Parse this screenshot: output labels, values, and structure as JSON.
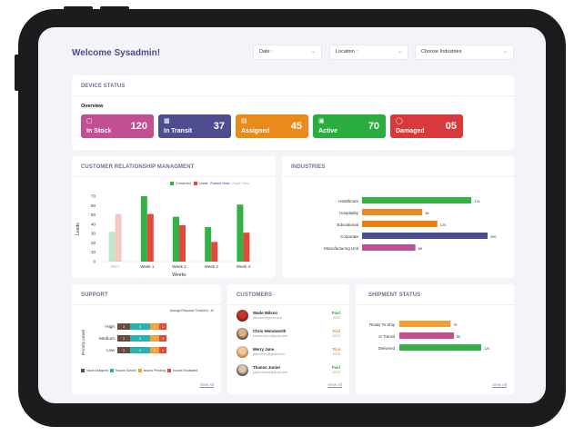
{
  "header": {
    "welcome": "Welcome Sysadmin!",
    "filters": [
      {
        "label": "Date :"
      },
      {
        "label": "Location :"
      },
      {
        "label": "Choose Industries"
      }
    ]
  },
  "device_status": {
    "title": "DEVICE STATUS",
    "overview_label": "Overview",
    "stats": [
      {
        "label": "In Stock",
        "value": "120",
        "color": "#c24f93",
        "icon": "cube-icon"
      },
      {
        "label": "In Transit",
        "value": "37",
        "color": "#4c4e8f",
        "icon": "truck-icon"
      },
      {
        "label": "Assigned",
        "value": "45",
        "color": "#ea8a1c",
        "icon": "assign-icon"
      },
      {
        "label": "Active",
        "value": "70",
        "color": "#2aad3c",
        "icon": "car-icon"
      },
      {
        "label": "Damaged",
        "value": "05",
        "color": "#d8393b",
        "icon": "shield-icon"
      }
    ]
  },
  "crm": {
    "title": "CUSTOMER RELATIONSHIP MANAGMENT",
    "legend": [
      {
        "name": "Converted",
        "color": "#33b143"
      },
      {
        "name": "Leads",
        "color": "#e04a3c"
      }
    ],
    "funnel_view": "Funnel View",
    "separator": "|",
    "graph_view": "Graph View",
    "chart_data": {
      "type": "bar",
      "categories": [
        "DEV",
        "Week 1",
        "Week 2",
        "Week 3",
        "Week 4"
      ],
      "series": [
        {
          "name": "Converted",
          "values": [
            32,
            70,
            48,
            37,
            61
          ]
        },
        {
          "name": "Leads",
          "values": [
            51,
            51,
            39,
            21,
            31
          ]
        }
      ],
      "xlabel": "Weeks",
      "ylabel": "Leads",
      "ylim": [
        0,
        70
      ],
      "yticks": [
        0,
        10,
        20,
        30,
        40,
        50,
        60,
        70
      ]
    }
  },
  "industries": {
    "title": "INDUSTRIES",
    "chart_data": {
      "type": "bar",
      "orientation": "horizontal",
      "categories": [
        "Healthcare",
        "Hospitality",
        "Educational",
        "Corporate",
        "Manufacturing Unit"
      ],
      "values": [
        174,
        96,
        120,
        200,
        85
      ],
      "colors": [
        "#33b143",
        "#e48c2a",
        "#f07d10",
        "#4c4e8f",
        "#c24f93"
      ]
    }
  },
  "support": {
    "title": "SUPPORT",
    "avg_response": "Average Response Time(min) : 40",
    "ylabel": "Priority Level",
    "rows": [
      {
        "label": "High",
        "segments": [
          {
            "v": "3"
          },
          {
            "v": "4"
          },
          {
            "v": "2"
          },
          {
            "v": "1"
          }
        ]
      },
      {
        "label": "Medium",
        "segments": [
          {
            "v": "3"
          },
          {
            "v": "4"
          },
          {
            "v": "2"
          },
          {
            "v": "1"
          }
        ]
      },
      {
        "label": "Low",
        "segments": [
          {
            "v": "3"
          },
          {
            "v": "4"
          },
          {
            "v": "2"
          },
          {
            "v": "1"
          }
        ]
      }
    ],
    "legend": [
      {
        "name": "Issue Assigned",
        "color": "#6b4b3e"
      },
      {
        "name": "Issues Solved",
        "color": "#27b3b3"
      },
      {
        "name": "Issues Pending",
        "color": "#f0a035"
      },
      {
        "name": "Issues Escalated",
        "color": "#e04a3c"
      }
    ],
    "view_all": "View All"
  },
  "customers": {
    "title": "CUSTOMERS",
    "list": [
      {
        "name": "Wade Wilson",
        "email": "wil.wade@gmail.com",
        "status": "Paid",
        "status_color": "#2aad3c",
        "date": "30/08"
      },
      {
        "name": "Chris Hemsworth",
        "email": "hemsworth.c@gmail.com",
        "status": "Trial",
        "status_color": "#ea8a1c",
        "date": "30/08"
      },
      {
        "name": "Merry Jane",
        "email": "jane.merry@gmail.com",
        "status": "Trial",
        "status_color": "#ea8a1c",
        "date": "30/08"
      },
      {
        "name": "Thanos Junior",
        "email": "junior.thanos@gmail.com",
        "status": "Paid",
        "status_color": "#2aad3c",
        "date": "30/08"
      }
    ],
    "view_all": "View All"
  },
  "shipment": {
    "title": "SHIPMENT STATUS",
    "chart_data": {
      "type": "bar",
      "orientation": "horizontal",
      "categories": [
        "Ready To Ship",
        "In Transit",
        "Delivered"
      ],
      "values": [
        75,
        80,
        120
      ],
      "colors": [
        "#f0a035",
        "#c24f93",
        "#33b143"
      ]
    },
    "view_all": "View All"
  }
}
